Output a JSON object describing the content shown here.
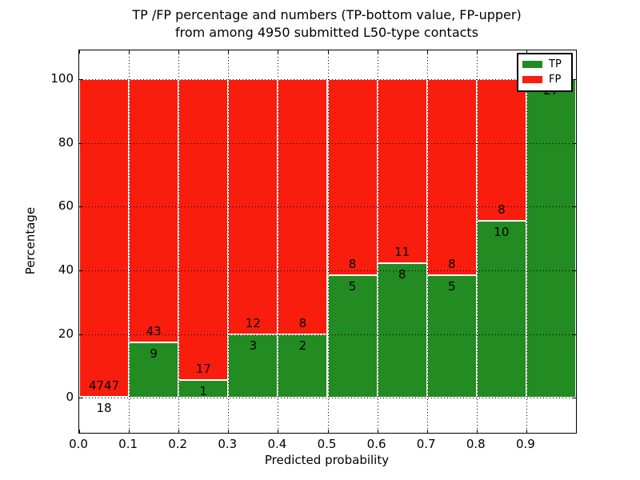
{
  "chart_data": {
    "type": "bar",
    "subtype": "stacked-percentage-bar",
    "title_line1": "TP /FP percentage and numbers (TP-bottom value, FP-upper)",
    "title_line2": "from among 4950 submitted L50-type contacts",
    "total_submitted": 4950,
    "xlabel": "Predicted probability",
    "ylabel": "Percentage",
    "bin_width": 0.1,
    "bin_starts": [
      0.0,
      0.1,
      0.2,
      0.3,
      0.4,
      0.5,
      0.6,
      0.7,
      0.8,
      0.9
    ],
    "x_tick_labels": [
      "0.0",
      "0.1",
      "0.2",
      "0.3",
      "0.4",
      "0.5",
      "0.6",
      "0.7",
      "0.8",
      "0.9"
    ],
    "y_tick_values": [
      0,
      20,
      40,
      60,
      80,
      100
    ],
    "y_tick_labels": [
      "0",
      "20",
      "40",
      "60",
      "80",
      "100"
    ],
    "xlim": [
      0.0,
      1.0
    ],
    "ylim": [
      -11,
      109
    ],
    "grid": "dotted",
    "series": [
      {
        "name": "TP",
        "color": "#228b22",
        "counts": [
          18,
          9,
          1,
          3,
          2,
          5,
          8,
          5,
          10,
          27
        ]
      },
      {
        "name": "FP",
        "color": "#f91d0e",
        "counts": [
          4747,
          43,
          17,
          12,
          8,
          8,
          11,
          8,
          8,
          0
        ]
      }
    ],
    "tp_percent_per_bin": [
      0.38,
      17.31,
      5.56,
      20.0,
      20.0,
      38.46,
      42.11,
      38.46,
      55.56,
      100.0
    ],
    "legend_position": "upper right",
    "colors": {
      "tp": "#228b22",
      "fp": "#f91d0e",
      "background": "#ffffff",
      "text": "#000000"
    }
  }
}
